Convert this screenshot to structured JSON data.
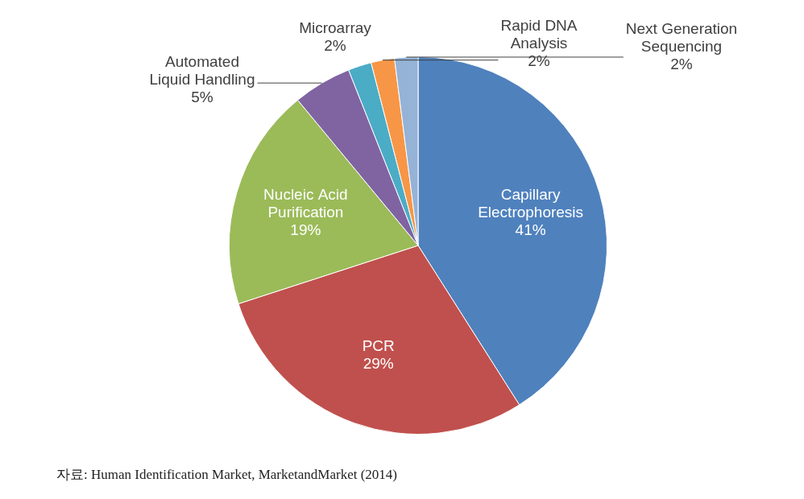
{
  "chart_data": {
    "type": "pie",
    "categories": [
      "Capillary Electrophoresis",
      "PCR",
      "Nucleic Acid Purification",
      "Automated Liquid Handling",
      "Microarray",
      "Rapid DNA Analysis",
      "Next Generation Sequencing"
    ],
    "values": [
      41,
      29,
      19,
      5,
      2,
      2,
      2
    ],
    "value_labels": [
      "41%",
      "29%",
      "19%",
      "5%",
      "2%",
      "2%",
      "2%"
    ],
    "colors": [
      "#4f81bd",
      "#c0504d",
      "#9bbb59",
      "#8064a2",
      "#4bacc6",
      "#f79646",
      "#95b3d7"
    ],
    "data_labels": true,
    "annotations": [
      "자료: Human Identification Market, MarketandMarket (2014)"
    ]
  }
}
